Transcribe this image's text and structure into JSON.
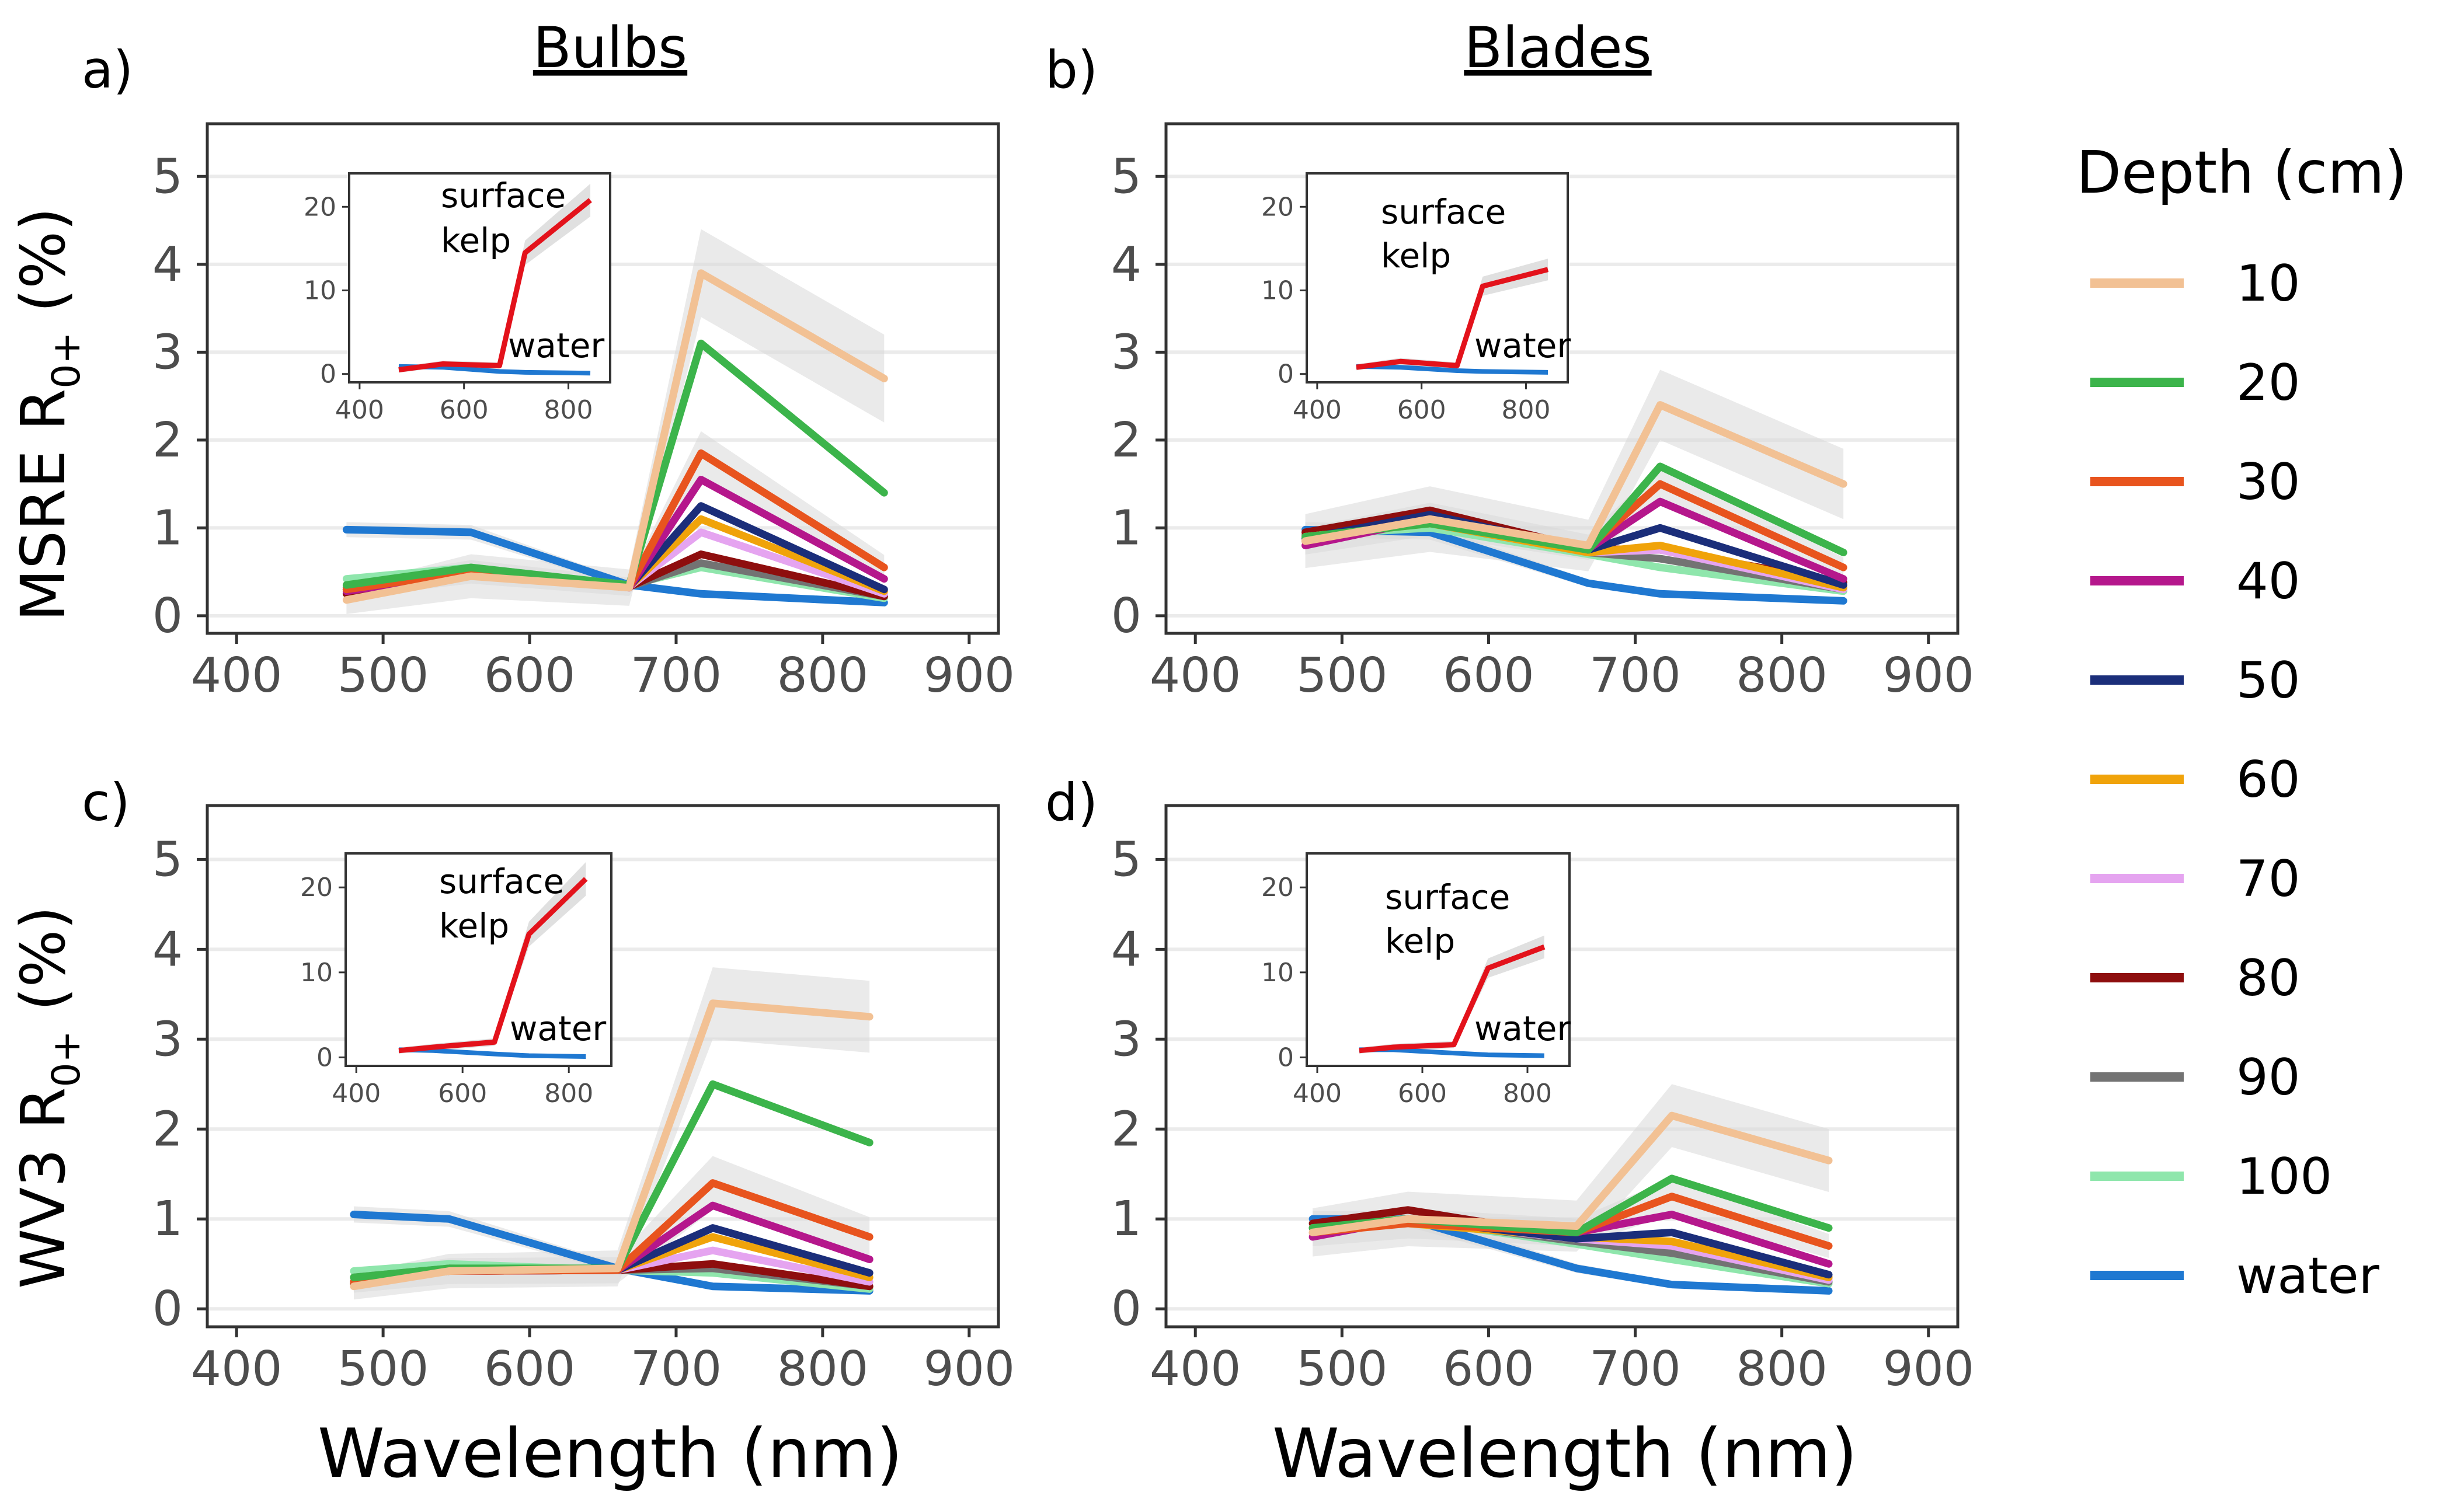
{
  "figure": {
    "col_titles": [
      "Bulbs",
      "Blades"
    ],
    "y_titles": [
      {
        "main": "MSRE R",
        "sub": "0+",
        "unit": " (%)"
      },
      {
        "main": "WV3 R",
        "sub": "0+",
        "unit": " (%)"
      }
    ],
    "x_title": "Wavelength (nm)",
    "legend": {
      "title": "Depth (cm)",
      "items": [
        {
          "label": "10",
          "color": "#F2C194"
        },
        {
          "label": "20",
          "color": "#3CB44B"
        },
        {
          "label": "30",
          "color": "#E8541E"
        },
        {
          "label": "40",
          "color": "#B5178C"
        },
        {
          "label": "50",
          "color": "#1B2E7A"
        },
        {
          "label": "60",
          "color": "#F0A30A"
        },
        {
          "label": "70",
          "color": "#E5A4F0"
        },
        {
          "label": "80",
          "color": "#8E0E0E"
        },
        {
          "label": "90",
          "color": "#737373"
        },
        {
          "label": "100",
          "color": "#8FE6AC"
        },
        {
          "label": "water",
          "color": "#1F78D1"
        }
      ]
    },
    "inset_labels": {
      "kelp_line1": "surface",
      "kelp_line2": "kelp",
      "water": "water",
      "kelp_color": "#E3121B",
      "water_color": "#1F78D1"
    }
  },
  "chart_data": [
    {
      "type": "line",
      "panel": "a)",
      "column": "Bulbs",
      "sensor": "MSRE",
      "xlabel": "Wavelength (nm)",
      "ylabel": "MSRE R0+ (%)",
      "xlim": [
        380,
        920
      ],
      "ylim": [
        -0.2,
        5.6
      ],
      "x_ticks": [
        400,
        500,
        600,
        700,
        800,
        900
      ],
      "y_ticks": [
        0,
        1,
        2,
        3,
        4,
        5
      ],
      "x": [
        475,
        560,
        668,
        717,
        842
      ],
      "series": [
        {
          "name": "10",
          "values": [
            0.18,
            0.45,
            0.32,
            3.9,
            2.7
          ],
          "ci": 0.5
        },
        {
          "name": "20",
          "values": [
            0.35,
            0.55,
            0.35,
            3.1,
            1.4
          ],
          "ci": 0
        },
        {
          "name": "30",
          "values": [
            0.3,
            0.5,
            0.33,
            1.85,
            0.55
          ],
          "ci": 0.25
        },
        {
          "name": "40",
          "values": [
            0.28,
            0.48,
            0.32,
            1.55,
            0.42
          ],
          "ci": 0
        },
        {
          "name": "50",
          "values": [
            0.3,
            0.5,
            0.33,
            1.25,
            0.3
          ],
          "ci": 0
        },
        {
          "name": "60",
          "values": [
            0.3,
            0.5,
            0.33,
            1.1,
            0.28
          ],
          "ci": 0
        },
        {
          "name": "70",
          "values": [
            0.3,
            0.5,
            0.33,
            0.95,
            0.25
          ],
          "ci": 0
        },
        {
          "name": "80",
          "values": [
            0.25,
            0.48,
            0.33,
            0.7,
            0.22
          ],
          "ci": 0
        },
        {
          "name": "90",
          "values": [
            0.32,
            0.5,
            0.33,
            0.6,
            0.22
          ],
          "ci": 0
        },
        {
          "name": "100",
          "values": [
            0.42,
            0.55,
            0.35,
            0.55,
            0.2
          ],
          "ci": 0
        },
        {
          "name": "water",
          "values": [
            0.98,
            0.95,
            0.35,
            0.25,
            0.15
          ],
          "ci": 0.1
        }
      ],
      "inset": {
        "xlim": [
          380,
          880
        ],
        "ylim": [
          -1,
          24
        ],
        "x_ticks": [
          400,
          600,
          800
        ],
        "y_ticks": [
          0,
          10,
          20
        ],
        "surface_kelp": {
          "x": [
            475,
            560,
            668,
            717,
            842
          ],
          "values": [
            0.5,
            1.2,
            1.0,
            14.5,
            20.8
          ]
        },
        "water": {
          "x": [
            475,
            560,
            668,
            717,
            842
          ],
          "values": [
            0.9,
            0.8,
            0.3,
            0.2,
            0.1
          ]
        }
      }
    },
    {
      "type": "line",
      "panel": "b)",
      "column": "Blades",
      "sensor": "MSRE",
      "xlabel": "Wavelength (nm)",
      "ylabel": "MSRE R0+ (%)",
      "xlim": [
        380,
        920
      ],
      "ylim": [
        -0.2,
        5.6
      ],
      "x_ticks": [
        400,
        500,
        600,
        700,
        800,
        900
      ],
      "y_ticks": [
        0,
        1,
        2,
        3,
        4,
        5
      ],
      "x": [
        475,
        560,
        668,
        717,
        842
      ],
      "series": [
        {
          "name": "10",
          "values": [
            0.85,
            1.1,
            0.8,
            2.4,
            1.5
          ],
          "ci": 0.4
        },
        {
          "name": "20",
          "values": [
            0.9,
            1.05,
            0.75,
            1.7,
            0.72
          ],
          "ci": 0
        },
        {
          "name": "30",
          "values": [
            0.85,
            1.1,
            0.78,
            1.5,
            0.55
          ],
          "ci": 0.2
        },
        {
          "name": "40",
          "values": [
            0.8,
            1.1,
            0.76,
            1.3,
            0.42
          ],
          "ci": 0
        },
        {
          "name": "50",
          "values": [
            0.88,
            1.15,
            0.75,
            1.0,
            0.35
          ],
          "ci": 0
        },
        {
          "name": "60",
          "values": [
            0.9,
            1.05,
            0.72,
            0.8,
            0.32
          ],
          "ci": 0
        },
        {
          "name": "70",
          "values": [
            0.9,
            1.05,
            0.72,
            0.75,
            0.3
          ],
          "ci": 0
        },
        {
          "name": "80",
          "values": [
            0.95,
            1.2,
            0.76,
            0.75,
            0.38
          ],
          "ci": 0
        },
        {
          "name": "90",
          "values": [
            0.92,
            1.05,
            0.72,
            0.65,
            0.3
          ],
          "ci": 0
        },
        {
          "name": "100",
          "values": [
            0.92,
            1.0,
            0.7,
            0.55,
            0.28
          ],
          "ci": 0
        },
        {
          "name": "water",
          "values": [
            0.98,
            0.95,
            0.37,
            0.25,
            0.17
          ],
          "ci": 0.1
        }
      ],
      "inset": {
        "xlim": [
          380,
          880
        ],
        "ylim": [
          -1,
          24
        ],
        "x_ticks": [
          400,
          600,
          800
        ],
        "y_ticks": [
          0,
          10,
          20
        ],
        "surface_kelp": {
          "x": [
            475,
            560,
            668,
            717,
            842
          ],
          "values": [
            0.8,
            1.5,
            1.0,
            10.5,
            12.5
          ]
        },
        "water": {
          "x": [
            475,
            560,
            668,
            717,
            842
          ],
          "values": [
            0.9,
            0.8,
            0.4,
            0.3,
            0.2
          ]
        }
      }
    },
    {
      "type": "line",
      "panel": "c)",
      "column": "Bulbs",
      "sensor": "WV3",
      "xlabel": "Wavelength (nm)",
      "ylabel": "WV3 R0+ (%)",
      "xlim": [
        380,
        920
      ],
      "ylim": [
        -0.2,
        5.6
      ],
      "x_ticks": [
        400,
        500,
        600,
        700,
        800,
        900
      ],
      "y_ticks": [
        0,
        1,
        2,
        3,
        4,
        5
      ],
      "x": [
        480,
        545,
        660,
        725,
        832
      ],
      "series": [
        {
          "name": "10",
          "values": [
            0.25,
            0.42,
            0.45,
            3.4,
            3.25
          ],
          "ci": 0.4
        },
        {
          "name": "20",
          "values": [
            0.35,
            0.45,
            0.45,
            2.5,
            1.85
          ],
          "ci": 0
        },
        {
          "name": "30",
          "values": [
            0.3,
            0.42,
            0.43,
            1.4,
            0.8
          ],
          "ci": 0.3
        },
        {
          "name": "40",
          "values": [
            0.3,
            0.42,
            0.43,
            1.15,
            0.55
          ],
          "ci": 0
        },
        {
          "name": "50",
          "values": [
            0.3,
            0.42,
            0.43,
            0.9,
            0.4
          ],
          "ci": 0
        },
        {
          "name": "60",
          "values": [
            0.3,
            0.42,
            0.43,
            0.8,
            0.35
          ],
          "ci": 0
        },
        {
          "name": "70",
          "values": [
            0.3,
            0.42,
            0.43,
            0.65,
            0.3
          ],
          "ci": 0
        },
        {
          "name": "80",
          "values": [
            0.28,
            0.42,
            0.43,
            0.5,
            0.25
          ],
          "ci": 0
        },
        {
          "name": "90",
          "values": [
            0.35,
            0.45,
            0.43,
            0.45,
            0.25
          ],
          "ci": 0
        },
        {
          "name": "100",
          "values": [
            0.42,
            0.5,
            0.43,
            0.4,
            0.22
          ],
          "ci": 0
        },
        {
          "name": "water",
          "values": [
            1.05,
            1.0,
            0.45,
            0.25,
            0.2
          ],
          "ci": 0.1
        }
      ],
      "inset": {
        "xlim": [
          380,
          880
        ],
        "ylim": [
          -1,
          24
        ],
        "x_ticks": [
          400,
          600,
          800
        ],
        "y_ticks": [
          0,
          10,
          20
        ],
        "surface_kelp": {
          "x": [
            480,
            545,
            660,
            725,
            832
          ],
          "values": [
            0.8,
            1.2,
            1.8,
            14.5,
            21.0
          ]
        },
        "water": {
          "x": [
            480,
            545,
            660,
            725,
            832
          ],
          "values": [
            0.9,
            0.8,
            0.4,
            0.2,
            0.1
          ]
        }
      }
    },
    {
      "type": "line",
      "panel": "d)",
      "column": "Blades",
      "sensor": "WV3",
      "xlabel": "Wavelength (nm)",
      "ylabel": "WV3 R0+ (%)",
      "xlim": [
        380,
        920
      ],
      "ylim": [
        -0.2,
        5.6
      ],
      "x_ticks": [
        400,
        500,
        600,
        700,
        800,
        900
      ],
      "y_ticks": [
        0,
        1,
        2,
        3,
        4,
        5
      ],
      "x": [
        480,
        545,
        660,
        725,
        832
      ],
      "series": [
        {
          "name": "10",
          "values": [
            0.85,
            1.0,
            0.92,
            2.15,
            1.65
          ],
          "ci": 0.35
        },
        {
          "name": "20",
          "values": [
            0.9,
            1.0,
            0.85,
            1.45,
            0.9
          ],
          "ci": 0
        },
        {
          "name": "30",
          "values": [
            0.85,
            0.95,
            0.85,
            1.25,
            0.7
          ],
          "ci": 0.2
        },
        {
          "name": "40",
          "values": [
            0.8,
            1.0,
            0.85,
            1.05,
            0.5
          ],
          "ci": 0
        },
        {
          "name": "50",
          "values": [
            0.9,
            1.0,
            0.78,
            0.85,
            0.38
          ],
          "ci": 0
        },
        {
          "name": "60",
          "values": [
            0.9,
            0.95,
            0.8,
            0.75,
            0.35
          ],
          "ci": 0
        },
        {
          "name": "70",
          "values": [
            0.9,
            0.98,
            0.78,
            0.7,
            0.32
          ],
          "ci": 0
        },
        {
          "name": "80",
          "values": [
            0.95,
            1.1,
            0.8,
            0.7,
            0.35
          ],
          "ci": 0
        },
        {
          "name": "90",
          "values": [
            0.9,
            1.0,
            0.75,
            0.62,
            0.3
          ],
          "ci": 0
        },
        {
          "name": "100",
          "values": [
            0.95,
            1.0,
            0.72,
            0.55,
            0.28
          ],
          "ci": 0
        },
        {
          "name": "water",
          "values": [
            1.0,
            1.0,
            0.45,
            0.27,
            0.2
          ],
          "ci": 0.1
        }
      ],
      "inset": {
        "xlim": [
          380,
          880
        ],
        "ylim": [
          -1,
          24
        ],
        "x_ticks": [
          400,
          600,
          800
        ],
        "y_ticks": [
          0,
          10,
          20
        ],
        "surface_kelp": {
          "x": [
            480,
            545,
            660,
            725,
            832
          ],
          "values": [
            0.8,
            1.2,
            1.5,
            10.5,
            13.0
          ]
        },
        "water": {
          "x": [
            480,
            545,
            660,
            725,
            832
          ],
          "values": [
            0.9,
            0.9,
            0.5,
            0.3,
            0.2
          ]
        }
      }
    }
  ]
}
